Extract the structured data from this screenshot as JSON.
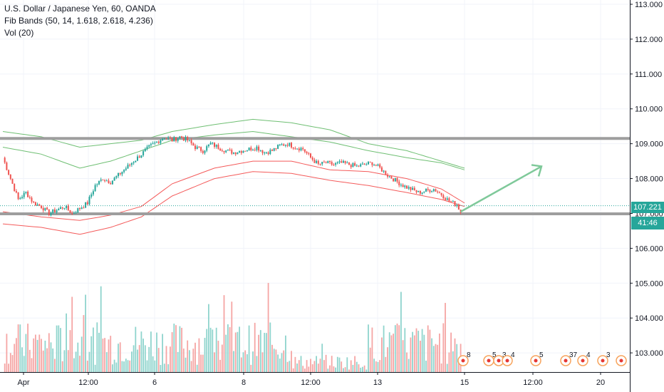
{
  "legend": {
    "title": "U.S. Dollar / Japanese Yen, 60, OANDA",
    "indicator": "Fib Bands (50, 14, 1.618, 2.618, 4.236)",
    "volume": "Vol (20)"
  },
  "current_price_label": "107.221",
  "countdown_label": "41:46",
  "colors": {
    "up": "#26a69a",
    "down": "#ef5350",
    "vol_up": "#8fd4cd",
    "vol_down": "#f5a5a4",
    "band_upper": "#6fbf73",
    "band_lower": "#f45b5b",
    "level_line": "#9e9e9e",
    "arrow": "#7fc99a",
    "price_tag": "#26a69a",
    "countdown_tag": "#26a69a"
  },
  "event_markers": [
    "8",
    "5",
    "3",
    "4",
    "5",
    "37",
    "4",
    "3"
  ],
  "chart_data": {
    "type": "candlestick",
    "y_axis": {
      "ticks": [
        "113.000",
        "112.000",
        "111.000",
        "110.000",
        "109.000",
        "108.000",
        "107.000",
        "106.000",
        "105.000",
        "104.000",
        "103.000"
      ],
      "range": [
        102.6,
        113.1
      ]
    },
    "x_axis": {
      "ticks": [
        "Apr",
        "12:00",
        "6",
        "8",
        "12:00",
        "13",
        "15",
        "12:00",
        "20"
      ]
    },
    "horizontal_levels": [
      109.15,
      106.99
    ],
    "current_price": 107.221,
    "close_path": [
      [
        0,
        108.6
      ],
      [
        4,
        108.0
      ],
      [
        8,
        107.4
      ],
      [
        12,
        107.6
      ],
      [
        16,
        107.3
      ],
      [
        20,
        107.2
      ],
      [
        24,
        107.0
      ],
      [
        28,
        107.1
      ],
      [
        32,
        107.2
      ],
      [
        36,
        107.0
      ],
      [
        40,
        107.15
      ],
      [
        44,
        107.3
      ],
      [
        48,
        107.8
      ],
      [
        52,
        108.0
      ],
      [
        56,
        107.9
      ],
      [
        60,
        108.1
      ],
      [
        64,
        108.3
      ],
      [
        68,
        108.5
      ],
      [
        72,
        108.7
      ],
      [
        76,
        108.9
      ],
      [
        80,
        109.05
      ],
      [
        84,
        109.2
      ],
      [
        88,
        109.1
      ],
      [
        92,
        109.2
      ],
      [
        96,
        109.1
      ],
      [
        100,
        108.9
      ],
      [
        104,
        108.8
      ],
      [
        108,
        109.0
      ],
      [
        112,
        108.9
      ],
      [
        116,
        108.8
      ],
      [
        120,
        108.75
      ],
      [
        124,
        108.8
      ],
      [
        128,
        108.85
      ],
      [
        132,
        108.9
      ],
      [
        136,
        108.75
      ],
      [
        140,
        108.8
      ],
      [
        144,
        108.95
      ],
      [
        148,
        109.0
      ],
      [
        152,
        108.9
      ],
      [
        156,
        108.85
      ],
      [
        160,
        108.6
      ],
      [
        164,
        108.4
      ],
      [
        168,
        108.45
      ],
      [
        172,
        108.4
      ],
      [
        176,
        108.45
      ],
      [
        180,
        108.4
      ],
      [
        184,
        108.35
      ],
      [
        188,
        108.4
      ],
      [
        192,
        108.45
      ],
      [
        196,
        108.3
      ],
      [
        200,
        108.1
      ],
      [
        204,
        107.95
      ],
      [
        208,
        107.8
      ],
      [
        212,
        107.7
      ],
      [
        216,
        107.6
      ],
      [
        220,
        107.65
      ],
      [
        224,
        107.7
      ],
      [
        228,
        107.55
      ],
      [
        232,
        107.35
      ],
      [
        236,
        107.25
      ],
      [
        238,
        107.05
      ]
    ],
    "bands_upper_outer": [
      [
        0,
        109.35
      ],
      [
        20,
        109.2
      ],
      [
        40,
        108.9
      ],
      [
        56,
        109.0
      ],
      [
        72,
        109.1
      ],
      [
        88,
        109.35
      ],
      [
        110,
        109.55
      ],
      [
        130,
        109.7
      ],
      [
        150,
        109.6
      ],
      [
        170,
        109.4
      ],
      [
        190,
        109.0
      ],
      [
        210,
        108.8
      ],
      [
        228,
        108.5
      ],
      [
        240,
        108.3
      ]
    ],
    "bands_upper_inner": [
      [
        0,
        108.9
      ],
      [
        20,
        108.7
      ],
      [
        40,
        108.3
      ],
      [
        56,
        108.5
      ],
      [
        72,
        108.8
      ],
      [
        88,
        109.1
      ],
      [
        110,
        109.25
      ],
      [
        130,
        109.35
      ],
      [
        150,
        109.2
      ],
      [
        170,
        109.05
      ],
      [
        190,
        108.8
      ],
      [
        210,
        108.6
      ],
      [
        228,
        108.45
      ],
      [
        240,
        108.25
      ]
    ],
    "bands_lower_inner": [
      [
        0,
        107.05
      ],
      [
        20,
        106.9
      ],
      [
        40,
        106.8
      ],
      [
        56,
        106.95
      ],
      [
        72,
        107.2
      ],
      [
        88,
        107.85
      ],
      [
        110,
        108.3
      ],
      [
        130,
        108.5
      ],
      [
        150,
        108.5
      ],
      [
        170,
        108.25
      ],
      [
        190,
        108.2
      ],
      [
        210,
        108.0
      ],
      [
        228,
        107.7
      ],
      [
        240,
        107.3
      ]
    ],
    "bands_lower_outer": [
      [
        0,
        106.7
      ],
      [
        20,
        106.6
      ],
      [
        40,
        106.4
      ],
      [
        56,
        106.6
      ],
      [
        72,
        106.9
      ],
      [
        88,
        107.5
      ],
      [
        110,
        108.0
      ],
      [
        130,
        108.2
      ],
      [
        150,
        108.15
      ],
      [
        170,
        107.95
      ],
      [
        190,
        107.8
      ],
      [
        210,
        107.6
      ],
      [
        228,
        107.4
      ],
      [
        240,
        107.2
      ]
    ],
    "projection_arrow": {
      "from": [
        238,
        107.05
      ],
      "to": [
        280,
        108.35
      ]
    }
  }
}
